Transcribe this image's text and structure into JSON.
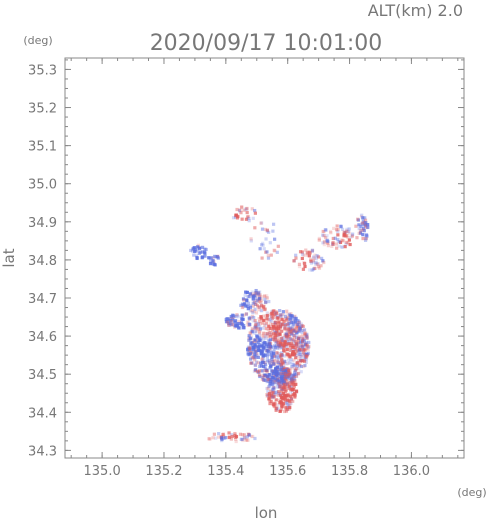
{
  "header": {
    "alt_label": "ALT(km) 2.0",
    "timestamp": "2020/09/17 10:01:00"
  },
  "colors": {
    "positive": "#e05a5a",
    "negative": "#5a6ee0",
    "axis": "#888888"
  },
  "chart_data": {
    "type": "heatmap",
    "xlabel": "lon",
    "ylabel": "lat",
    "x_unit": "(deg)",
    "y_unit": "(deg)",
    "xlim": [
      134.88,
      136.17
    ],
    "ylim": [
      34.28,
      35.33
    ],
    "x_ticks": [
      135.0,
      135.2,
      135.4,
      135.6,
      135.8,
      136.0
    ],
    "y_ticks": [
      34.3,
      34.4,
      34.5,
      34.6,
      34.7,
      34.8,
      34.9,
      35.0,
      35.1,
      35.2,
      35.3
    ],
    "x_tick_labels": [
      "135.0",
      "135.2",
      "135.4",
      "135.6",
      "135.8",
      "136.0"
    ],
    "y_tick_labels": [
      "34.3",
      "34.4",
      "34.5",
      "34.6",
      "34.7",
      "34.8",
      "34.9",
      "35.0",
      "35.1",
      "35.2",
      "35.3"
    ],
    "grid": false,
    "points": [
      {
        "lon": 135.56,
        "lat": 34.62,
        "v": 0.6
      },
      {
        "lon": 135.52,
        "lat": 34.58,
        "v": -0.7
      },
      {
        "lon": 135.6,
        "lat": 34.55,
        "v": 0.5
      },
      {
        "lon": 135.58,
        "lat": 34.48,
        "v": -0.5
      },
      {
        "lon": 135.55,
        "lat": 34.42,
        "v": 0.4
      },
      {
        "lon": 135.62,
        "lat": 34.66,
        "v": -0.4
      },
      {
        "lon": 135.5,
        "lat": 34.65,
        "v": 0.5
      },
      {
        "lon": 135.45,
        "lat": 34.63,
        "v": -0.6
      },
      {
        "lon": 135.6,
        "lat": 34.45,
        "v": 0.7
      },
      {
        "lon": 135.54,
        "lat": 34.52,
        "v": -0.3
      },
      {
        "lon": 135.48,
        "lat": 34.7,
        "v": -0.6
      },
      {
        "lon": 135.42,
        "lat": 34.34,
        "v": 0.5
      },
      {
        "lon": 135.38,
        "lat": 34.33,
        "v": -0.4
      },
      {
        "lon": 135.3,
        "lat": 34.82,
        "v": -0.7
      },
      {
        "lon": 135.36,
        "lat": 34.8,
        "v": -0.5
      },
      {
        "lon": 135.45,
        "lat": 34.92,
        "v": 0.4
      },
      {
        "lon": 135.66,
        "lat": 34.8,
        "v": 0.6
      },
      {
        "lon": 135.72,
        "lat": 34.78,
        "v": -0.5
      },
      {
        "lon": 135.8,
        "lat": 34.85,
        "v": 0.6
      },
      {
        "lon": 135.84,
        "lat": 34.88,
        "v": -0.4
      }
    ]
  }
}
